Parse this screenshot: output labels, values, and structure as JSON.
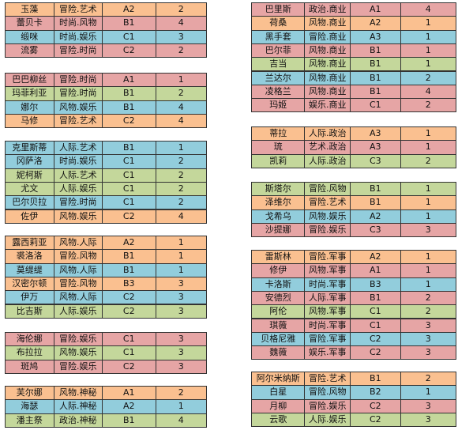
{
  "columns": [
    {
      "groups": [
        {
          "rows": [
            {
              "name": "玉藻",
              "tags": "冒险.艺术",
              "grade": "A2",
              "level": 2,
              "color": "#fac090"
            },
            {
              "name": "蕾贝卡",
              "tags": "时尚.风物",
              "grade": "B1",
              "level": 4,
              "color": "#e6a5a5"
            },
            {
              "name": "缎咪",
              "tags": "时尚.娱乐",
              "grade": "C1",
              "level": 3,
              "color": "#92cddc"
            },
            {
              "name": "流雾",
              "tags": "冒险.时尚",
              "grade": "C2",
              "level": 2,
              "color": "#e6a5a5"
            }
          ]
        },
        {
          "rows": [
            {
              "name": "巴巴柳丝",
              "tags": "冒险.时尚",
              "grade": "A1",
              "level": 1,
              "color": "#e6a5a5"
            },
            {
              "name": "玛菲利亚",
              "tags": "冒险.时尚",
              "grade": "B1",
              "level": 2,
              "color": "#c4d79b"
            },
            {
              "name": "娜尔",
              "tags": "风物.娱乐",
              "grade": "B1",
              "level": 4,
              "color": "#92cddc"
            },
            {
              "name": "马修",
              "tags": "冒险.艺术",
              "grade": "C2",
              "level": 4,
              "color": "#fac090"
            }
          ]
        },
        {
          "rows": [
            {
              "name": "克里斯蒂",
              "tags": "人际.艺术",
              "grade": "B1",
              "level": 1,
              "color": "#92cddc"
            },
            {
              "name": "冈萨洛",
              "tags": "时尚.娱乐",
              "grade": "C1",
              "level": 2,
              "color": "#92cddc"
            },
            {
              "name": "妮柯斯",
              "tags": "人际.艺术",
              "grade": "C1",
              "level": 2,
              "color": "#c4d79b"
            },
            {
              "name": "尤文",
              "tags": "人际.娱乐",
              "grade": "C1",
              "level": 2,
              "color": "#c4d79b"
            },
            {
              "name": "巴尔贝拉",
              "tags": "冒险.时尚",
              "grade": "C1",
              "level": 2,
              "color": "#92cddc"
            },
            {
              "name": "佐伊",
              "tags": "风物.娱乐",
              "grade": "C2",
              "level": 4,
              "color": "#fac090"
            }
          ]
        },
        {
          "rows": [
            {
              "name": "露西莉亚",
              "tags": "风物.人际",
              "grade": "A2",
              "level": 1,
              "color": "#fac090"
            },
            {
              "name": "裘洛洛",
              "tags": "冒险.风物",
              "grade": "B1",
              "level": 1,
              "color": "#fac090"
            },
            {
              "name": "莫缇缇",
              "tags": "风物.人际",
              "grade": "B1",
              "level": 1,
              "color": "#92cddc"
            },
            {
              "name": "汉密尔顿",
              "tags": "冒险.风物",
              "grade": "B3",
              "level": 3,
              "color": "#fac090"
            },
            {
              "name": "伊万",
              "tags": "风物.人际",
              "grade": "C2",
              "level": 3,
              "color": "#92cddc"
            },
            {
              "name": "比吉斯",
              "tags": "人际.娱乐",
              "grade": "C2",
              "level": 3,
              "color": "#c4d79b"
            }
          ]
        },
        {
          "rows": [
            {
              "name": "海伦娜",
              "tags": "冒险.娱乐",
              "grade": "C1",
              "level": 3,
              "color": "#e6a5a5"
            },
            {
              "name": "布拉拉",
              "tags": "风物.娱乐",
              "grade": "C1",
              "level": 3,
              "color": "#c4d79b"
            },
            {
              "name": "斑鸠",
              "tags": "冒险.娱乐",
              "grade": "C2",
              "level": 3,
              "color": "#e6a5a5"
            }
          ]
        },
        {
          "rows": [
            {
              "name": "芙尔娜",
              "tags": "风物.神秘",
              "grade": "A1",
              "level": 2,
              "color": "#fac090"
            },
            {
              "name": "海瑟",
              "tags": "人际.神秘",
              "grade": "A2",
              "level": 1,
              "color": "#92cddc"
            },
            {
              "name": "潘主祭",
              "tags": "政治.神秘",
              "grade": "B1",
              "level": 4,
              "color": "#c4d79b"
            }
          ]
        }
      ]
    },
    {
      "groups": [
        {
          "rows": [
            {
              "name": "巴里斯",
              "tags": "政治.商业",
              "grade": "A1",
              "level": 4,
              "color": "#e6a5a5"
            },
            {
              "name": "荷桑",
              "tags": "风物.商业",
              "grade": "A2",
              "level": 1,
              "color": "#fac090"
            },
            {
              "name": "黑手套",
              "tags": "冒险.商业",
              "grade": "A3",
              "level": 1,
              "color": "#92cddc"
            },
            {
              "name": "巴尔菲",
              "tags": "风物.商业",
              "grade": "B1",
              "level": 1,
              "color": "#e6a5a5"
            },
            {
              "name": "吉当",
              "tags": "风物.商业",
              "grade": "B1",
              "level": 1,
              "color": "#c4d79b"
            },
            {
              "name": "兰达尔",
              "tags": "风物.商业",
              "grade": "B1",
              "level": 2,
              "color": "#92cddc"
            },
            {
              "name": "凌格兰",
              "tags": "风物.商业",
              "grade": "B1",
              "level": 4,
              "color": "#e6a5a5"
            },
            {
              "name": "玛姬",
              "tags": "娱乐.商业",
              "grade": "C1",
              "level": 2,
              "color": "#e6a5a5"
            }
          ]
        },
        {
          "rows": [
            {
              "name": "蒂拉",
              "tags": "人际.政治",
              "grade": "A3",
              "level": 1,
              "color": "#fac090"
            },
            {
              "name": "琉",
              "tags": "艺术.政治",
              "grade": "A3",
              "level": 1,
              "color": "#e6a5a5"
            },
            {
              "name": "凯莉",
              "tags": "人际.政治",
              "grade": "C3",
              "level": 2,
              "color": "#c4d79b"
            }
          ]
        },
        {
          "rows": [
            {
              "name": "斯塔尔",
              "tags": "冒险.风物",
              "grade": "B1",
              "level": 1,
              "color": "#c4d79b"
            },
            {
              "name": "泽维尔",
              "tags": "冒险.艺术",
              "grade": "B1",
              "level": 1,
              "color": "#fac090"
            },
            {
              "name": "戈希乌",
              "tags": "风物.娱乐",
              "grade": "A2",
              "level": 1,
              "color": "#92cddc"
            },
            {
              "name": "沙提娜",
              "tags": "冒险.娱乐",
              "grade": "C3",
              "level": 3,
              "color": "#e6a5a5"
            }
          ]
        },
        {
          "rows": [
            {
              "name": "雷斯林",
              "tags": "冒险.军事",
              "grade": "A2",
              "level": 1,
              "color": "#fac090"
            },
            {
              "name": "修伊",
              "tags": "风物.军事",
              "grade": "A1",
              "level": 1,
              "color": "#e6a5a5"
            },
            {
              "name": "卡洛斯",
              "tags": "时尚.军事",
              "grade": "B3",
              "level": 1,
              "color": "#92cddc"
            },
            {
              "name": "安德烈",
              "tags": "人际.军事",
              "grade": "B1",
              "level": 2,
              "color": "#e6a5a5"
            },
            {
              "name": "阿伦",
              "tags": "风物.军事",
              "grade": "C1",
              "level": 2,
              "color": "#c4d79b"
            },
            {
              "name": "琪薇",
              "tags": "时尚.军事",
              "grade": "C1",
              "level": 3,
              "color": "#e6a5a5"
            },
            {
              "name": "贝格尼雅",
              "tags": "冒险.军事",
              "grade": "C2",
              "level": 3,
              "color": "#92cddc"
            },
            {
              "name": "魏薇",
              "tags": "娱乐.军事",
              "grade": "C2",
              "level": 3,
              "color": "#e6a5a5"
            }
          ]
        },
        {
          "rows": [
            {
              "name": "阿尔米纳斯",
              "tags": "冒险.艺术",
              "grade": "B1",
              "level": 2,
              "color": "#fac090"
            },
            {
              "name": "白星",
              "tags": "冒险.风物",
              "grade": "B2",
              "level": 1,
              "color": "#92cddc"
            },
            {
              "name": "月柳",
              "tags": "冒险.娱乐",
              "grade": "C2",
              "level": 3,
              "color": "#e6a5a5"
            },
            {
              "name": "云歌",
              "tags": "人际.娱乐",
              "grade": "C2",
              "level": 3,
              "color": "#c4d79b"
            }
          ]
        }
      ]
    }
  ]
}
